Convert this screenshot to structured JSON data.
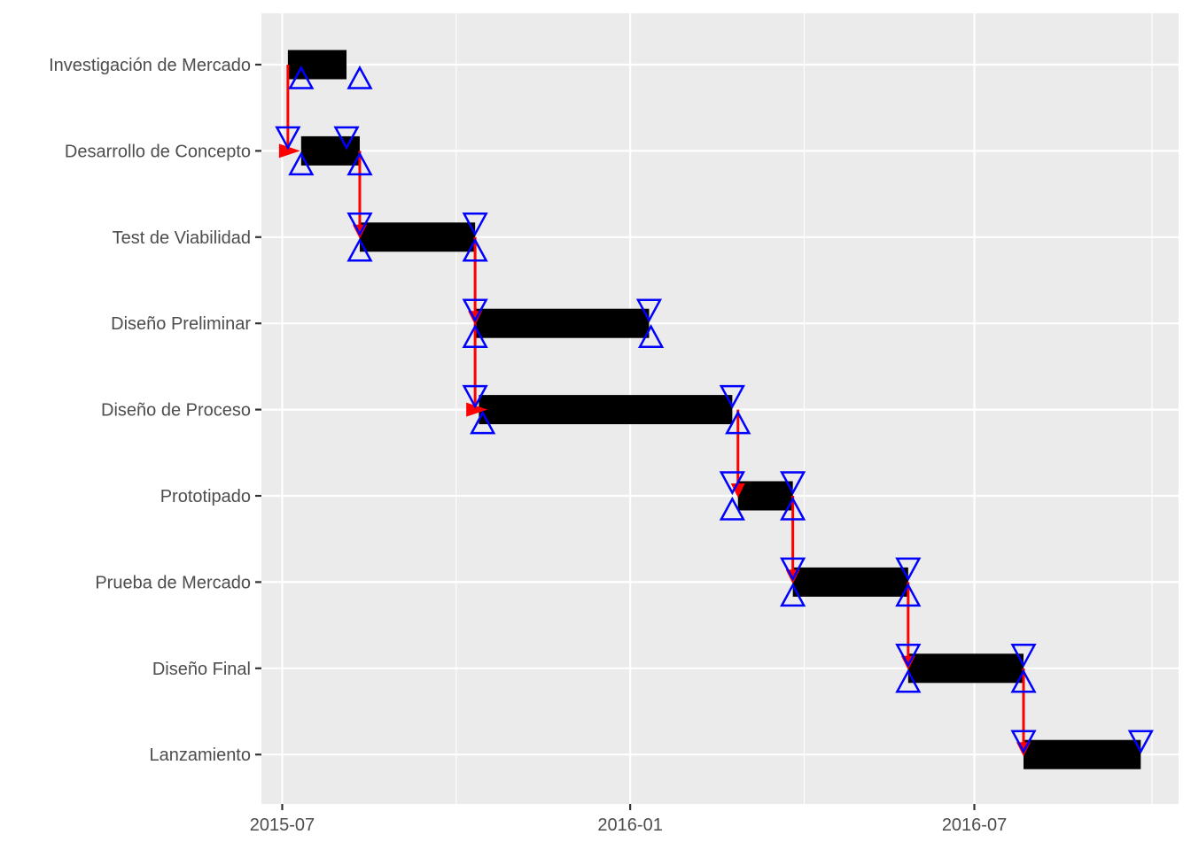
{
  "chart_data": {
    "type": "gantt",
    "title": "",
    "xlabel": "",
    "ylabel": "",
    "x_tick_labels": [
      "2015-07",
      "2016-01",
      "2016-07"
    ],
    "xlim": [
      "2015-06-20",
      "2016-10-17"
    ],
    "grid": true,
    "legend": "none",
    "colors": {
      "panel_background": "#EBEBEB",
      "grid_line": "#FFFFFF",
      "bar": "#000000",
      "dependency_arrow": "#FF0000",
      "milestone_marker": "#0000FF"
    },
    "tasks": [
      {
        "name": "Investigación de Mercado",
        "start": "2015-07-04",
        "end": "2015-08-04",
        "early_start": "2015-07-11",
        "late_start": "2015-08-11"
      },
      {
        "name": "Desarrollo de Concepto",
        "start": "2015-07-11",
        "end": "2015-08-11",
        "early_start": "2015-07-11",
        "late_start": "2015-08-11",
        "early_finish": "2015-07-04",
        "late_finish": "2015-08-04"
      },
      {
        "name": "Test de Viabilidad",
        "start": "2015-08-11",
        "end": "2015-10-11",
        "early_start": "2015-08-11",
        "late_start": "2015-10-11",
        "early_finish": "2015-08-11",
        "late_finish": "2015-10-11"
      },
      {
        "name": "Diseño Preliminar",
        "start": "2015-10-11",
        "end": "2016-01-11",
        "early_start": "2015-10-11",
        "late_start": "2016-01-12",
        "early_finish": "2015-10-11",
        "late_finish": "2016-01-11"
      },
      {
        "name": "Diseño de Proceso",
        "start": "2015-10-13",
        "end": "2016-02-24",
        "early_start": "2015-10-15",
        "late_start": "2016-02-27",
        "early_finish": "2015-10-11",
        "late_finish": "2016-02-24"
      },
      {
        "name": "Prototipado",
        "start": "2016-02-27",
        "end": "2016-03-27",
        "early_start": "2016-02-24",
        "late_start": "2016-03-27",
        "early_finish": "2016-02-24",
        "late_finish": "2016-03-27"
      },
      {
        "name": "Prueba de Mercado",
        "start": "2016-03-27",
        "end": "2016-05-27",
        "early_start": "2016-03-27",
        "late_start": "2016-05-27",
        "early_finish": "2016-03-27",
        "late_finish": "2016-05-27"
      },
      {
        "name": "Diseño Final",
        "start": "2016-05-27",
        "end": "2016-07-27",
        "early_start": "2016-05-27",
        "late_start": "2016-07-27",
        "early_finish": "2016-05-27",
        "late_finish": "2016-07-27"
      },
      {
        "name": "Lanzamiento",
        "start": "2016-07-27",
        "end": "2016-09-27",
        "early_finish": "2016-07-27",
        "late_finish": "2016-09-27"
      }
    ],
    "dependencies": [
      {
        "from": "Investigación de Mercado",
        "to": "Desarrollo de Concepto",
        "date": "2015-07-04",
        "arrow": "right"
      },
      {
        "from": "Desarrollo de Concepto",
        "to": "Test de Viabilidad",
        "date": "2015-08-11",
        "arrow": "down"
      },
      {
        "from": "Test de Viabilidad",
        "to": "Diseño Preliminar",
        "date": "2015-10-11",
        "arrow": "down"
      },
      {
        "from": "Diseño Preliminar",
        "to": "Diseño de Proceso",
        "date": "2015-10-11",
        "arrow": "right"
      },
      {
        "from": "Diseño de Proceso",
        "to": "Prototipado",
        "date": "2016-02-27",
        "arrow": "down"
      },
      {
        "from": "Prototipado",
        "to": "Prueba de Mercado",
        "date": "2016-03-27",
        "arrow": "down"
      },
      {
        "from": "Prueba de Mercado",
        "to": "Diseño Final",
        "date": "2016-05-27",
        "arrow": "down"
      },
      {
        "from": "Diseño Final",
        "to": "Lanzamiento",
        "date": "2016-07-27",
        "arrow": "down"
      }
    ]
  }
}
